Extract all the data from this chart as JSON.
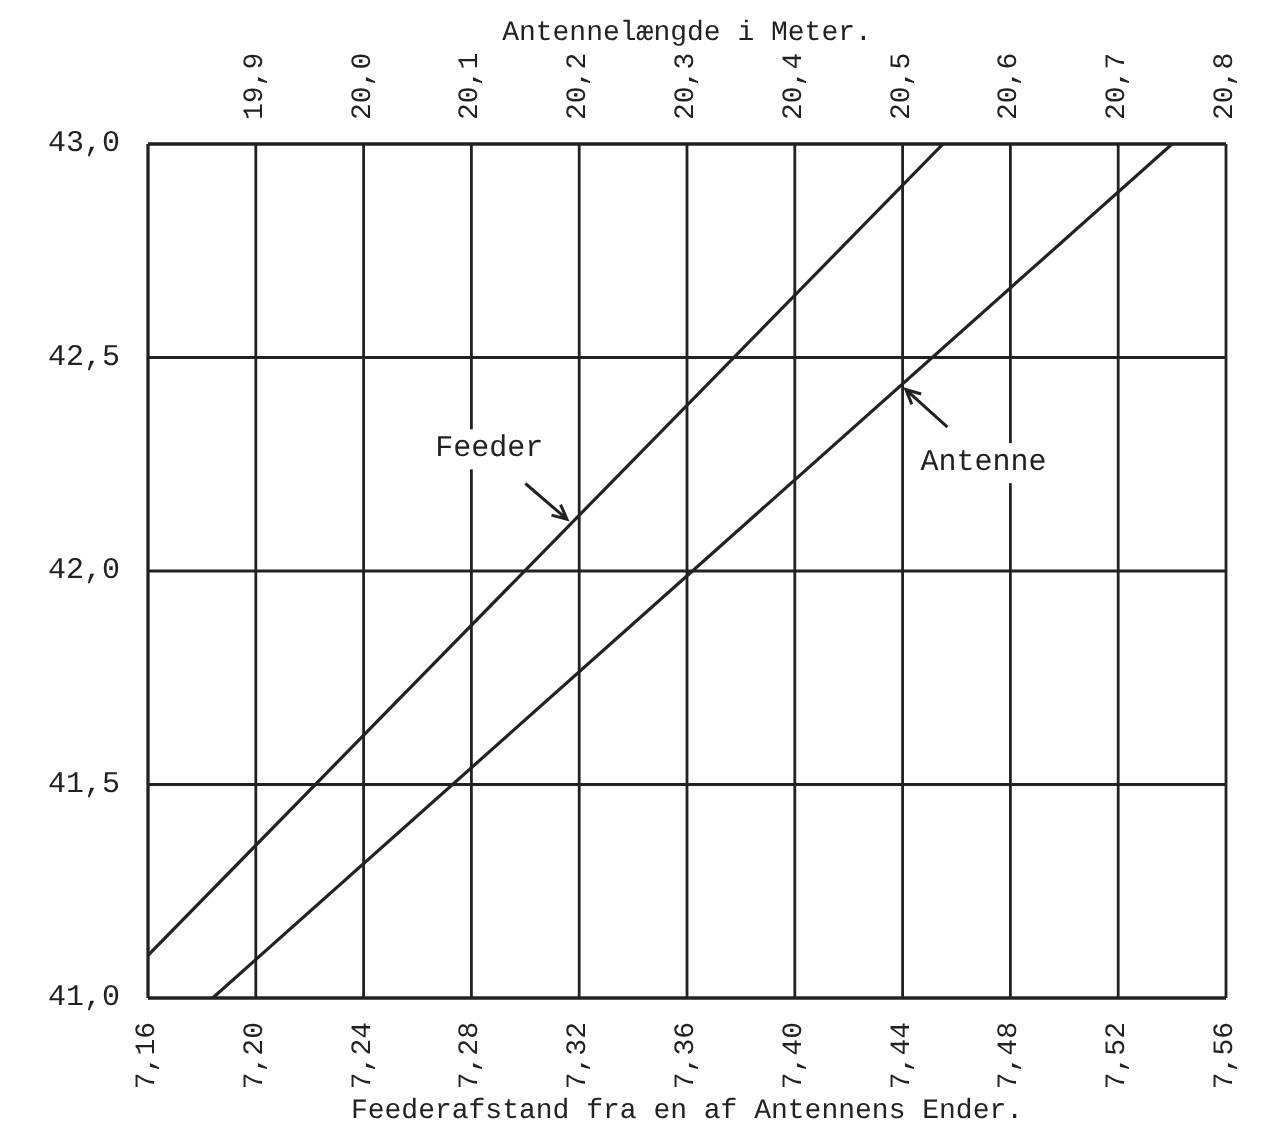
{
  "chart_data": {
    "type": "line",
    "xlabel": "Feederafstand fra en af Antennens Ender.",
    "x2label": "Antennelængde i Meter.",
    "xlim": [
      7.16,
      7.56
    ],
    "xticks": [
      {
        "value": 7.16,
        "label": "7,16"
      },
      {
        "value": 7.2,
        "label": "7,20"
      },
      {
        "value": 7.24,
        "label": "7,24"
      },
      {
        "value": 7.28,
        "label": "7,28"
      },
      {
        "value": 7.32,
        "label": "7,32"
      },
      {
        "value": 7.36,
        "label": "7,36"
      },
      {
        "value": 7.4,
        "label": "7,40"
      },
      {
        "value": 7.44,
        "label": "7,44"
      },
      {
        "value": 7.48,
        "label": "7,48"
      },
      {
        "value": 7.52,
        "label": "7,52"
      },
      {
        "value": 7.56,
        "label": "7,56"
      }
    ],
    "x2lim": [
      19.8,
      20.8
    ],
    "x2ticks": [
      {
        "value": 19.9,
        "label": "19,9"
      },
      {
        "value": 20.0,
        "label": "20,0"
      },
      {
        "value": 20.1,
        "label": "20,1"
      },
      {
        "value": 20.2,
        "label": "20,2"
      },
      {
        "value": 20.3,
        "label": "20,3"
      },
      {
        "value": 20.4,
        "label": "20,4"
      },
      {
        "value": 20.5,
        "label": "20,5"
      },
      {
        "value": 20.6,
        "label": "20,6"
      },
      {
        "value": 20.7,
        "label": "20,7"
      },
      {
        "value": 20.8,
        "label": "20,8"
      }
    ],
    "ylim": [
      41.0,
      43.0
    ],
    "yticks": [
      {
        "value": 41.0,
        "label": "41,0"
      },
      {
        "value": 41.5,
        "label": "41,5"
      },
      {
        "value": 42.0,
        "label": "42,0"
      },
      {
        "value": 42.5,
        "label": "42,5"
      },
      {
        "value": 43.0,
        "label": "43,0"
      }
    ],
    "grid": true,
    "marker": "none",
    "line_style": "solid",
    "series": [
      {
        "name": "Feeder",
        "color": "#222222",
        "x": [
          7.16,
          7.455
        ],
        "values": [
          41.1,
          43.0
        ]
      },
      {
        "name": "Antenne",
        "color": "#222222",
        "axis": "x2",
        "x": [
          19.86,
          20.75
        ],
        "values": [
          41.0,
          43.0
        ]
      }
    ]
  }
}
